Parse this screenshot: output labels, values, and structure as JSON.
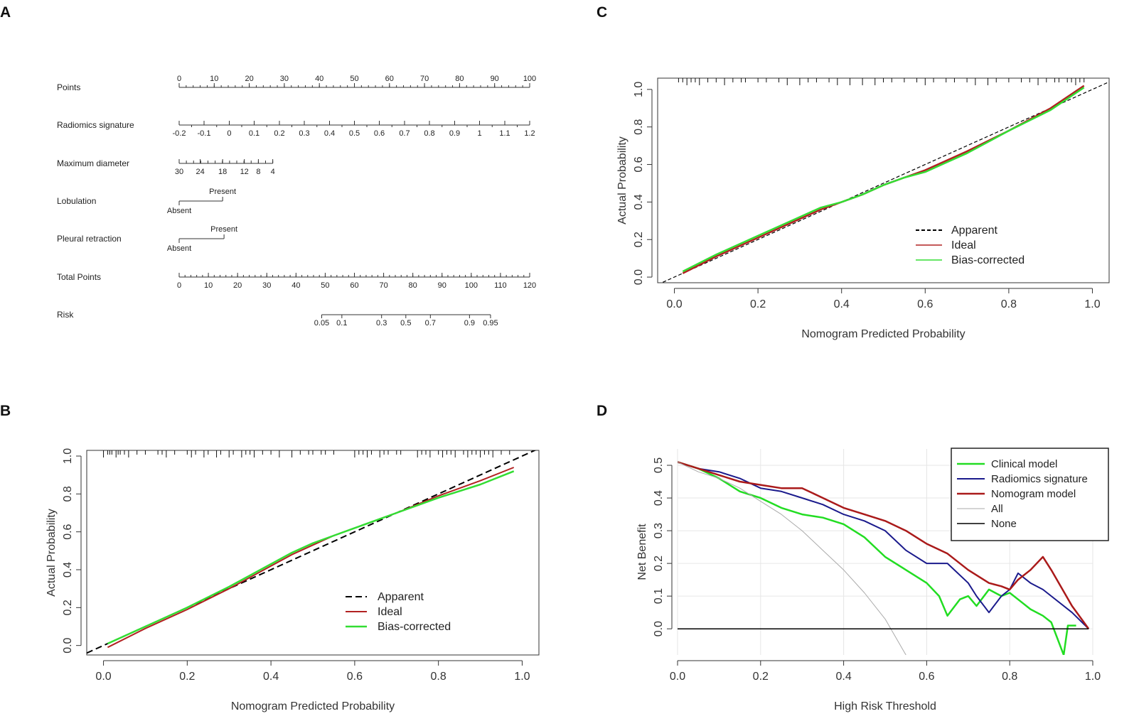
{
  "panel_labels": {
    "A": "A",
    "B": "B",
    "C": "C",
    "D": "D"
  },
  "colors": {
    "apparent": "#000000",
    "ideal": "#b22222",
    "bias": "#33dd33",
    "clinical": "#22dd22",
    "radiomics": "#1a1a8c",
    "nomogram": "#aa1a1a",
    "all": "#aaaaaa",
    "none": "#000000",
    "grid": "#e6e6e6"
  },
  "chart_data": [
    {
      "type": "nomogram",
      "panel": "A",
      "rows": [
        {
          "label": "Points",
          "values": [
            0,
            100
          ],
          "ticks": [
            {
              "v": 0,
              "t": "0"
            },
            {
              "v": 10,
              "t": "10"
            },
            {
              "v": 20,
              "t": "20"
            },
            {
              "v": 30,
              "t": "30"
            },
            {
              "v": 40,
              "t": "40"
            },
            {
              "v": 50,
              "t": "50"
            },
            {
              "v": 60,
              "t": "60"
            },
            {
              "v": 70,
              "t": "70"
            },
            {
              "v": 80,
              "t": "80"
            },
            {
              "v": 90,
              "t": "90"
            },
            {
              "v": 100,
              "t": "100"
            }
          ]
        },
        {
          "label": "Radiomics signature",
          "ticks": [
            {
              "p": 0,
              "t": "-0.2"
            },
            {
              "p": 7.1,
              "t": "-0.1"
            },
            {
              "p": 14.3,
              "t": "0"
            },
            {
              "p": 21.4,
              "t": "0.1"
            },
            {
              "p": 28.6,
              "t": "0.2"
            },
            {
              "p": 35.7,
              "t": "0.3"
            },
            {
              "p": 42.9,
              "t": "0.4"
            },
            {
              "p": 50,
              "t": "0.5"
            },
            {
              "p": 57.1,
              "t": "0.6"
            },
            {
              "p": 64.3,
              "t": "0.7"
            },
            {
              "p": 71.4,
              "t": "0.8"
            },
            {
              "p": 78.6,
              "t": "0.9"
            },
            {
              "p": 85.7,
              "t": "1"
            },
            {
              "p": 92.9,
              "t": "1.1"
            },
            {
              "p": 100,
              "t": "1.2"
            }
          ]
        },
        {
          "label": "Maximum diameter",
          "ticks": [
            {
              "p": 0,
              "t": "30"
            },
            {
              "p": 6,
              "t": "24"
            },
            {
              "p": 12.4,
              "t": "18"
            },
            {
              "p": 18.6,
              "t": "12"
            },
            {
              "p": 22.6,
              "t": "8"
            },
            {
              "p": 26.7,
              "t": "4"
            }
          ]
        },
        {
          "label": "Lobulation",
          "levels": [
            {
              "p": 0,
              "t": "Absent"
            },
            {
              "p": 12.4,
              "t": "Present"
            }
          ]
        },
        {
          "label": "Pleural retraction",
          "levels": [
            {
              "p": 0,
              "t": "Absent"
            },
            {
              "p": 12.8,
              "t": "Present"
            }
          ]
        },
        {
          "label": "Total Points",
          "values": [
            0,
            120
          ],
          "ticks": [
            {
              "v": 0,
              "t": "0"
            },
            {
              "v": 10,
              "t": "10"
            },
            {
              "v": 20,
              "t": "20"
            },
            {
              "v": 30,
              "t": "30"
            },
            {
              "v": 40,
              "t": "40"
            },
            {
              "v": 50,
              "t": "50"
            },
            {
              "v": 60,
              "t": "60"
            },
            {
              "v": 70,
              "t": "70"
            },
            {
              "v": 80,
              "t": "80"
            },
            {
              "v": 90,
              "t": "90"
            },
            {
              "v": 100,
              "t": "100"
            },
            {
              "v": 110,
              "t": "110"
            },
            {
              "v": 120,
              "t": "120"
            }
          ]
        },
        {
          "label": "Risk",
          "ticks": [
            {
              "tp": 48.8,
              "t": "0.05"
            },
            {
              "tp": 55.7,
              "t": "0.1"
            },
            {
              "tp": 69.3,
              "t": "0.3"
            },
            {
              "tp": 77.6,
              "t": "0.5"
            },
            {
              "tp": 86,
              "t": "0.7"
            },
            {
              "tp": 99.4,
              "t": "0.9"
            },
            {
              "tp": 106.6,
              "t": "0.95"
            }
          ]
        }
      ]
    },
    {
      "type": "line",
      "panel": "B",
      "title": "",
      "xlabel": "Nomogram Predicted Probability",
      "ylabel": "Actual Probability",
      "xlim": [
        -0.04,
        1.04
      ],
      "ylim": [
        -0.05,
        1.03
      ],
      "xticks": [
        "0.0",
        "0.2",
        "0.4",
        "0.6",
        "0.8",
        "1.0"
      ],
      "yticks": [
        "0.0",
        "0.2",
        "0.4",
        "0.6",
        "0.8",
        "1.0"
      ],
      "legend": [
        "Apparent",
        "Ideal",
        "Bias-corrected"
      ],
      "legend_position": "bottom-right",
      "rug": [
        0.0,
        0.01,
        0.015,
        0.02,
        0.03,
        0.035,
        0.04,
        0.05,
        0.06,
        0.08,
        0.1,
        0.13,
        0.14,
        0.15,
        0.17,
        0.2,
        0.21,
        0.22,
        0.24,
        0.25,
        0.27,
        0.28,
        0.3,
        0.31,
        0.33,
        0.34,
        0.35,
        0.36,
        0.38,
        0.4,
        0.42,
        0.45,
        0.47,
        0.49,
        0.5,
        0.52,
        0.53,
        0.55,
        0.6,
        0.61,
        0.62,
        0.63,
        0.64,
        0.66,
        0.67,
        0.68,
        0.7,
        0.71,
        0.75,
        0.76,
        0.77,
        0.78,
        0.8,
        0.81,
        0.82,
        0.83,
        0.84,
        0.86,
        0.87,
        0.88,
        0.89,
        0.9,
        0.91,
        0.92,
        0.93,
        0.95,
        0.97
      ],
      "series": [
        {
          "name": "Apparent",
          "x": [
            -0.04,
            1.04
          ],
          "y": [
            -0.04,
            1.04
          ]
        },
        {
          "name": "Ideal",
          "x": [
            0.01,
            0.1,
            0.2,
            0.3,
            0.35,
            0.4,
            0.45,
            0.5,
            0.55,
            0.6,
            0.7,
            0.8,
            0.9,
            0.98
          ],
          "y": [
            -0.01,
            0.09,
            0.19,
            0.3,
            0.36,
            0.42,
            0.48,
            0.53,
            0.58,
            0.62,
            0.7,
            0.79,
            0.87,
            0.94
          ]
        },
        {
          "name": "Bias-corrected",
          "x": [
            0.01,
            0.1,
            0.2,
            0.3,
            0.35,
            0.4,
            0.45,
            0.5,
            0.55,
            0.6,
            0.7,
            0.8,
            0.9,
            0.98
          ],
          "y": [
            0.01,
            0.1,
            0.2,
            0.31,
            0.37,
            0.43,
            0.49,
            0.54,
            0.58,
            0.62,
            0.7,
            0.78,
            0.85,
            0.92
          ]
        }
      ]
    },
    {
      "type": "line",
      "panel": "C",
      "title": "",
      "xlabel": "Nomogram Predicted Probability",
      "ylabel": "Actual Probability",
      "xlim": [
        -0.04,
        1.04
      ],
      "ylim": [
        -0.03,
        1.06
      ],
      "xticks": [
        "0.0",
        "0.2",
        "0.4",
        "0.6",
        "0.8",
        "1.0"
      ],
      "yticks": [
        "0.0",
        "0.2",
        "0.4",
        "0.6",
        "0.8",
        "1.0"
      ],
      "legend": [
        "Apparent",
        "Ideal",
        "Bias-corrected"
      ],
      "legend_position": "bottom-right",
      "rug": [
        0.01,
        0.02,
        0.03,
        0.04,
        0.05,
        0.06,
        0.08,
        0.1,
        0.12,
        0.14,
        0.16,
        0.17,
        0.2,
        0.22,
        0.25,
        0.27,
        0.3,
        0.32,
        0.34,
        0.37,
        0.39,
        0.42,
        0.45,
        0.48,
        0.5,
        0.52,
        0.55,
        0.58,
        0.6,
        0.62,
        0.65,
        0.67,
        0.7,
        0.72,
        0.75,
        0.77,
        0.8,
        0.83,
        0.85,
        0.87,
        0.89,
        0.91,
        0.92,
        0.94,
        0.95,
        0.96,
        0.97,
        0.98
      ],
      "series": [
        {
          "name": "Apparent",
          "x": [
            -0.04,
            1.04
          ],
          "y": [
            -0.04,
            1.04
          ]
        },
        {
          "name": "Ideal",
          "x": [
            0.02,
            0.1,
            0.2,
            0.3,
            0.35,
            0.4,
            0.45,
            0.5,
            0.55,
            0.6,
            0.65,
            0.7,
            0.8,
            0.9,
            0.98
          ],
          "y": [
            0.02,
            0.11,
            0.21,
            0.31,
            0.36,
            0.4,
            0.44,
            0.49,
            0.53,
            0.57,
            0.62,
            0.67,
            0.78,
            0.9,
            1.02
          ]
        },
        {
          "name": "Bias-corrected",
          "x": [
            0.02,
            0.1,
            0.2,
            0.3,
            0.35,
            0.4,
            0.45,
            0.5,
            0.55,
            0.6,
            0.65,
            0.7,
            0.8,
            0.9,
            0.98
          ],
          "y": [
            0.03,
            0.12,
            0.22,
            0.32,
            0.37,
            0.4,
            0.44,
            0.49,
            0.53,
            0.56,
            0.61,
            0.66,
            0.78,
            0.89,
            1.01
          ]
        }
      ]
    },
    {
      "type": "line",
      "panel": "D",
      "title": "",
      "xlabel": "High Risk Threshold",
      "ylabel": "Net Benefit",
      "xlim": [
        0,
        1
      ],
      "ylim": [
        -0.08,
        0.55
      ],
      "grid": true,
      "xticks": [
        "0.0",
        "0.2",
        "0.4",
        "0.6",
        "0.8",
        "1.0"
      ],
      "yticks": [
        "0.0",
        "0.1",
        "0.2",
        "0.3",
        "0.4",
        "0.5"
      ],
      "legend": [
        "Clinical model",
        "Radiomics signature",
        "Nomogram model",
        "All",
        "None"
      ],
      "legend_position": "top-right",
      "series": [
        {
          "name": "Clinical model",
          "x": [
            0,
            0.05,
            0.1,
            0.15,
            0.2,
            0.25,
            0.3,
            0.35,
            0.4,
            0.45,
            0.5,
            0.55,
            0.6,
            0.63,
            0.65,
            0.68,
            0.7,
            0.72,
            0.75,
            0.78,
            0.8,
            0.83,
            0.85,
            0.88,
            0.9,
            0.93,
            0.94,
            0.96
          ],
          "y": [
            0.51,
            0.49,
            0.46,
            0.42,
            0.4,
            0.37,
            0.35,
            0.34,
            0.32,
            0.28,
            0.22,
            0.18,
            0.14,
            0.1,
            0.04,
            0.09,
            0.1,
            0.07,
            0.12,
            0.1,
            0.11,
            0.08,
            0.06,
            0.04,
            0.02,
            -0.08,
            0.01,
            0.01
          ]
        },
        {
          "name": "Radiomics signature",
          "x": [
            0,
            0.05,
            0.1,
            0.15,
            0.2,
            0.25,
            0.3,
            0.35,
            0.4,
            0.45,
            0.5,
            0.55,
            0.6,
            0.65,
            0.7,
            0.72,
            0.75,
            0.78,
            0.8,
            0.82,
            0.85,
            0.88,
            0.9,
            0.95,
            0.99
          ],
          "y": [
            0.51,
            0.49,
            0.48,
            0.46,
            0.43,
            0.42,
            0.4,
            0.38,
            0.35,
            0.33,
            0.3,
            0.24,
            0.2,
            0.2,
            0.14,
            0.1,
            0.05,
            0.1,
            0.12,
            0.17,
            0.14,
            0.12,
            0.1,
            0.05,
            0.0
          ]
        },
        {
          "name": "Nomogram model",
          "x": [
            0,
            0.05,
            0.1,
            0.15,
            0.2,
            0.25,
            0.3,
            0.35,
            0.4,
            0.45,
            0.5,
            0.55,
            0.6,
            0.65,
            0.7,
            0.75,
            0.78,
            0.8,
            0.82,
            0.85,
            0.88,
            0.9,
            0.95,
            0.99
          ],
          "y": [
            0.51,
            0.49,
            0.47,
            0.45,
            0.44,
            0.43,
            0.43,
            0.4,
            0.37,
            0.35,
            0.33,
            0.3,
            0.26,
            0.23,
            0.18,
            0.14,
            0.13,
            0.12,
            0.15,
            0.18,
            0.22,
            0.18,
            0.07,
            0.0
          ]
        },
        {
          "name": "All",
          "x": [
            0,
            0.05,
            0.1,
            0.15,
            0.2,
            0.25,
            0.3,
            0.35,
            0.4,
            0.45,
            0.5,
            0.55
          ],
          "y": [
            0.51,
            0.48,
            0.46,
            0.43,
            0.39,
            0.35,
            0.3,
            0.24,
            0.18,
            0.11,
            0.03,
            -0.08
          ]
        },
        {
          "name": "None",
          "x": [
            0,
            0.99
          ],
          "y": [
            0,
            0
          ]
        }
      ]
    }
  ]
}
